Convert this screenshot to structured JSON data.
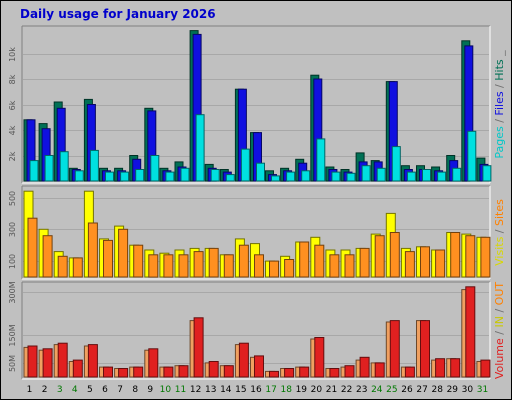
{
  "chart_data": {
    "type": "bar",
    "title": "Daily usage for January 2026",
    "categories": [
      "1",
      "2",
      "3",
      "4",
      "5",
      "6",
      "7",
      "8",
      "9",
      "10",
      "11",
      "12",
      "13",
      "14",
      "15",
      "16",
      "17",
      "18",
      "19",
      "20",
      "21",
      "22",
      "23",
      "24",
      "25",
      "26",
      "27",
      "28",
      "29",
      "30",
      "31"
    ],
    "weekend_days": [
      "3",
      "4",
      "10",
      "11",
      "17",
      "18",
      "24",
      "25",
      "31"
    ],
    "weekday_label_color": "#000000",
    "weekend_label_color": "#007700",
    "background_color": "#c0c0c0",
    "panels": [
      {
        "id": "hits",
        "ylim": [
          0,
          12000
        ],
        "yticks": [
          "2k",
          "4k",
          "6k",
          "8k",
          "10k"
        ],
        "ytick_values": [
          2000,
          4000,
          6000,
          8000,
          10000
        ],
        "grid": true,
        "series": [
          {
            "name": "Pages",
            "color": "#00e0e0",
            "values": [
              1600,
              2000,
              2300,
              800,
              2400,
              700,
              700,
              900,
              2000,
              700,
              1000,
              5200,
              900,
              500,
              2500,
              1400,
              400,
              700,
              800,
              3300,
              700,
              600,
              1200,
              1000,
              2700,
              700,
              900,
              700,
              1000,
              3900,
              1200
            ]
          },
          {
            "name": "Files",
            "color": "#1010e0",
            "values": [
              4800,
              4100,
              5700,
              900,
              6000,
              800,
              800,
              1700,
              5500,
              800,
              1100,
              11500,
              1000,
              700,
              7200,
              3800,
              500,
              800,
              1400,
              8000,
              900,
              700,
              1500,
              1500,
              7800,
              900,
              900,
              800,
              1600,
              10600,
              1300
            ]
          },
          {
            "name": "Hits",
            "color": "#007055",
            "values": [
              4800,
              4500,
              6200,
              1000,
              6400,
              1000,
              1000,
              2000,
              5700,
              1000,
              1500,
              11800,
              1300,
              900,
              7200,
              3800,
              800,
              1000,
              1700,
              8300,
              1100,
              900,
              2200,
              1600,
              7800,
              1200,
              1200,
              1100,
              2000,
              11000,
              1800
            ]
          }
        ],
        "side_label": [
          {
            "text": "Pages",
            "color": "#00c8c8"
          },
          {
            "text": " / ",
            "color": "#707070"
          },
          {
            "text": "Files",
            "color": "#1010e0"
          },
          {
            "text": " / ",
            "color": "#707070"
          },
          {
            "text": "Hits",
            "color": "#007055"
          },
          {
            "text": " _",
            "color": "#707070"
          }
        ]
      },
      {
        "id": "visits",
        "ylim": [
          0,
          560
        ],
        "yticks": [
          "100",
          "300",
          "500"
        ],
        "ytick_values": [
          100,
          300,
          500
        ],
        "grid": true,
        "series": [
          {
            "name": "Sites",
            "color": "#ff9020",
            "values": [
              370,
              260,
              130,
              120,
              340,
              230,
              300,
              200,
              140,
              140,
              140,
              160,
              180,
              140,
              200,
              140,
              100,
              110,
              220,
              200,
              140,
              140,
              180,
              260,
              280,
              160,
              190,
              170,
              280,
              260,
              250
            ]
          },
          {
            "name": "Visits",
            "color": "#ffff00",
            "values": [
              540,
              300,
              160,
              120,
              540,
              240,
              320,
              200,
              170,
              150,
              170,
              180,
              180,
              140,
              240,
              210,
              100,
              130,
              220,
              250,
              170,
              170,
              180,
              270,
              400,
              180,
              190,
              170,
              280,
              270,
              250
            ]
          }
        ],
        "side_label": [
          {
            "text": "Visits",
            "color": "#d8d800"
          },
          {
            "text": " / ",
            "color": "#707070"
          },
          {
            "text": "Sites",
            "color": "#ff8000"
          }
        ]
      },
      {
        "id": "volume",
        "ylim": [
          0,
          330
        ],
        "yticks": [
          "50M",
          "150M",
          "300M"
        ],
        "ytick_values": [
          50,
          150,
          300
        ],
        "grid": true,
        "series": [
          {
            "name": "Volume",
            "color": "#e02020",
            "values": [
              110,
              100,
              120,
              60,
              115,
              35,
              30,
              35,
              100,
              35,
              40,
              210,
              55,
              40,
              120,
              75,
              20,
              30,
              35,
              140,
              30,
              40,
              70,
              50,
              200,
              35,
              200,
              65,
              65,
              320,
              60
            ]
          },
          {
            "name": "Volume-out",
            "color": "#f0a060",
            "values": [
              105,
              95,
              115,
              55,
              110,
              35,
              30,
              35,
              95,
              35,
              40,
              200,
              50,
              40,
              115,
              70,
              20,
              30,
              35,
              135,
              30,
              35,
              60,
              50,
              195,
              35,
              200,
              60,
              65,
              310,
              55
            ]
          }
        ],
        "side_label": [
          {
            "text": "Volume",
            "color": "#e02020"
          },
          {
            "text": " / ",
            "color": "#707070"
          },
          {
            "text": "IN",
            "color": "#c8c800"
          },
          {
            "text": " / ",
            "color": "#707070"
          },
          {
            "text": "OUT",
            "color": "#ff8000"
          }
        ]
      }
    ]
  }
}
